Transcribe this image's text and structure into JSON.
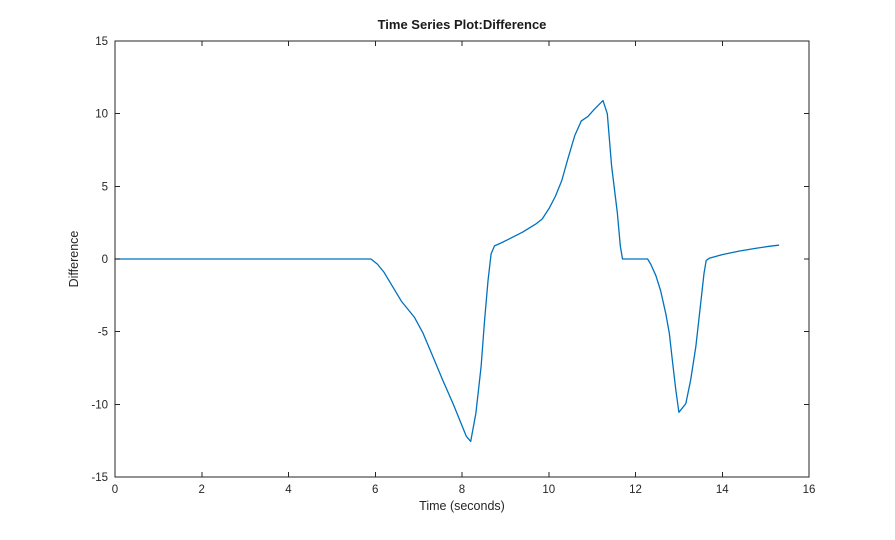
{
  "figure": {
    "title": "Time Series Plot:Difference",
    "xlabel": "Time (seconds)",
    "ylabel": "Difference"
  },
  "chart_data": {
    "type": "line",
    "title": "Time Series Plot:Difference",
    "xlabel": "Time (seconds)",
    "ylabel": "Difference",
    "xlim": [
      0,
      16
    ],
    "ylim": [
      -15,
      15
    ],
    "xticks": [
      0,
      2,
      4,
      6,
      8,
      10,
      12,
      14,
      16
    ],
    "yticks": [
      -15,
      -10,
      -5,
      0,
      5,
      10,
      15
    ],
    "grid": false,
    "box": true,
    "legend": "none",
    "line_color": "#0072BD",
    "axis_color": "#262626",
    "background": "#ffffff",
    "series": [
      {
        "name": "Difference",
        "x": [
          0,
          1,
          2,
          3,
          4,
          5,
          5.5,
          5.9,
          6.05,
          6.2,
          6.4,
          6.6,
          6.9,
          7.1,
          7.3,
          7.55,
          7.8,
          7.95,
          8.1,
          8.2,
          8.32,
          8.44,
          8.52,
          8.6,
          8.67,
          8.75,
          8.9,
          9.1,
          9.4,
          9.7,
          9.85,
          10.0,
          10.15,
          10.3,
          10.45,
          10.6,
          10.75,
          10.9,
          11.05,
          11.25,
          11.35,
          11.45,
          11.58,
          11.65,
          11.7,
          12.0,
          12.28,
          12.35,
          12.47,
          12.58,
          12.7,
          12.78,
          12.85,
          12.93,
          13.0,
          13.16,
          13.27,
          13.39,
          13.5,
          13.58,
          13.63,
          13.7,
          14.0,
          14.4,
          14.8,
          15.1,
          15.3
        ],
        "y": [
          0,
          0,
          0,
          0,
          0,
          0,
          0,
          0,
          -0.35,
          -0.9,
          -1.9,
          -2.9,
          -4.0,
          -5.1,
          -6.5,
          -8.3,
          -10.0,
          -11.1,
          -12.2,
          -12.55,
          -10.6,
          -7.4,
          -4.2,
          -1.5,
          0.35,
          0.9,
          1.1,
          1.4,
          1.85,
          2.4,
          2.75,
          3.45,
          4.3,
          5.4,
          7.0,
          8.5,
          9.5,
          9.8,
          10.3,
          10.9,
          10.0,
          6.4,
          3.2,
          0.9,
          0.0,
          0.0,
          0.0,
          -0.35,
          -1.15,
          -2.2,
          -3.8,
          -5.1,
          -7.0,
          -9.0,
          -10.55,
          -9.95,
          -8.35,
          -6.05,
          -3.1,
          -1.0,
          -0.1,
          0.05,
          0.3,
          0.55,
          0.75,
          0.88,
          0.95
        ]
      }
    ]
  }
}
